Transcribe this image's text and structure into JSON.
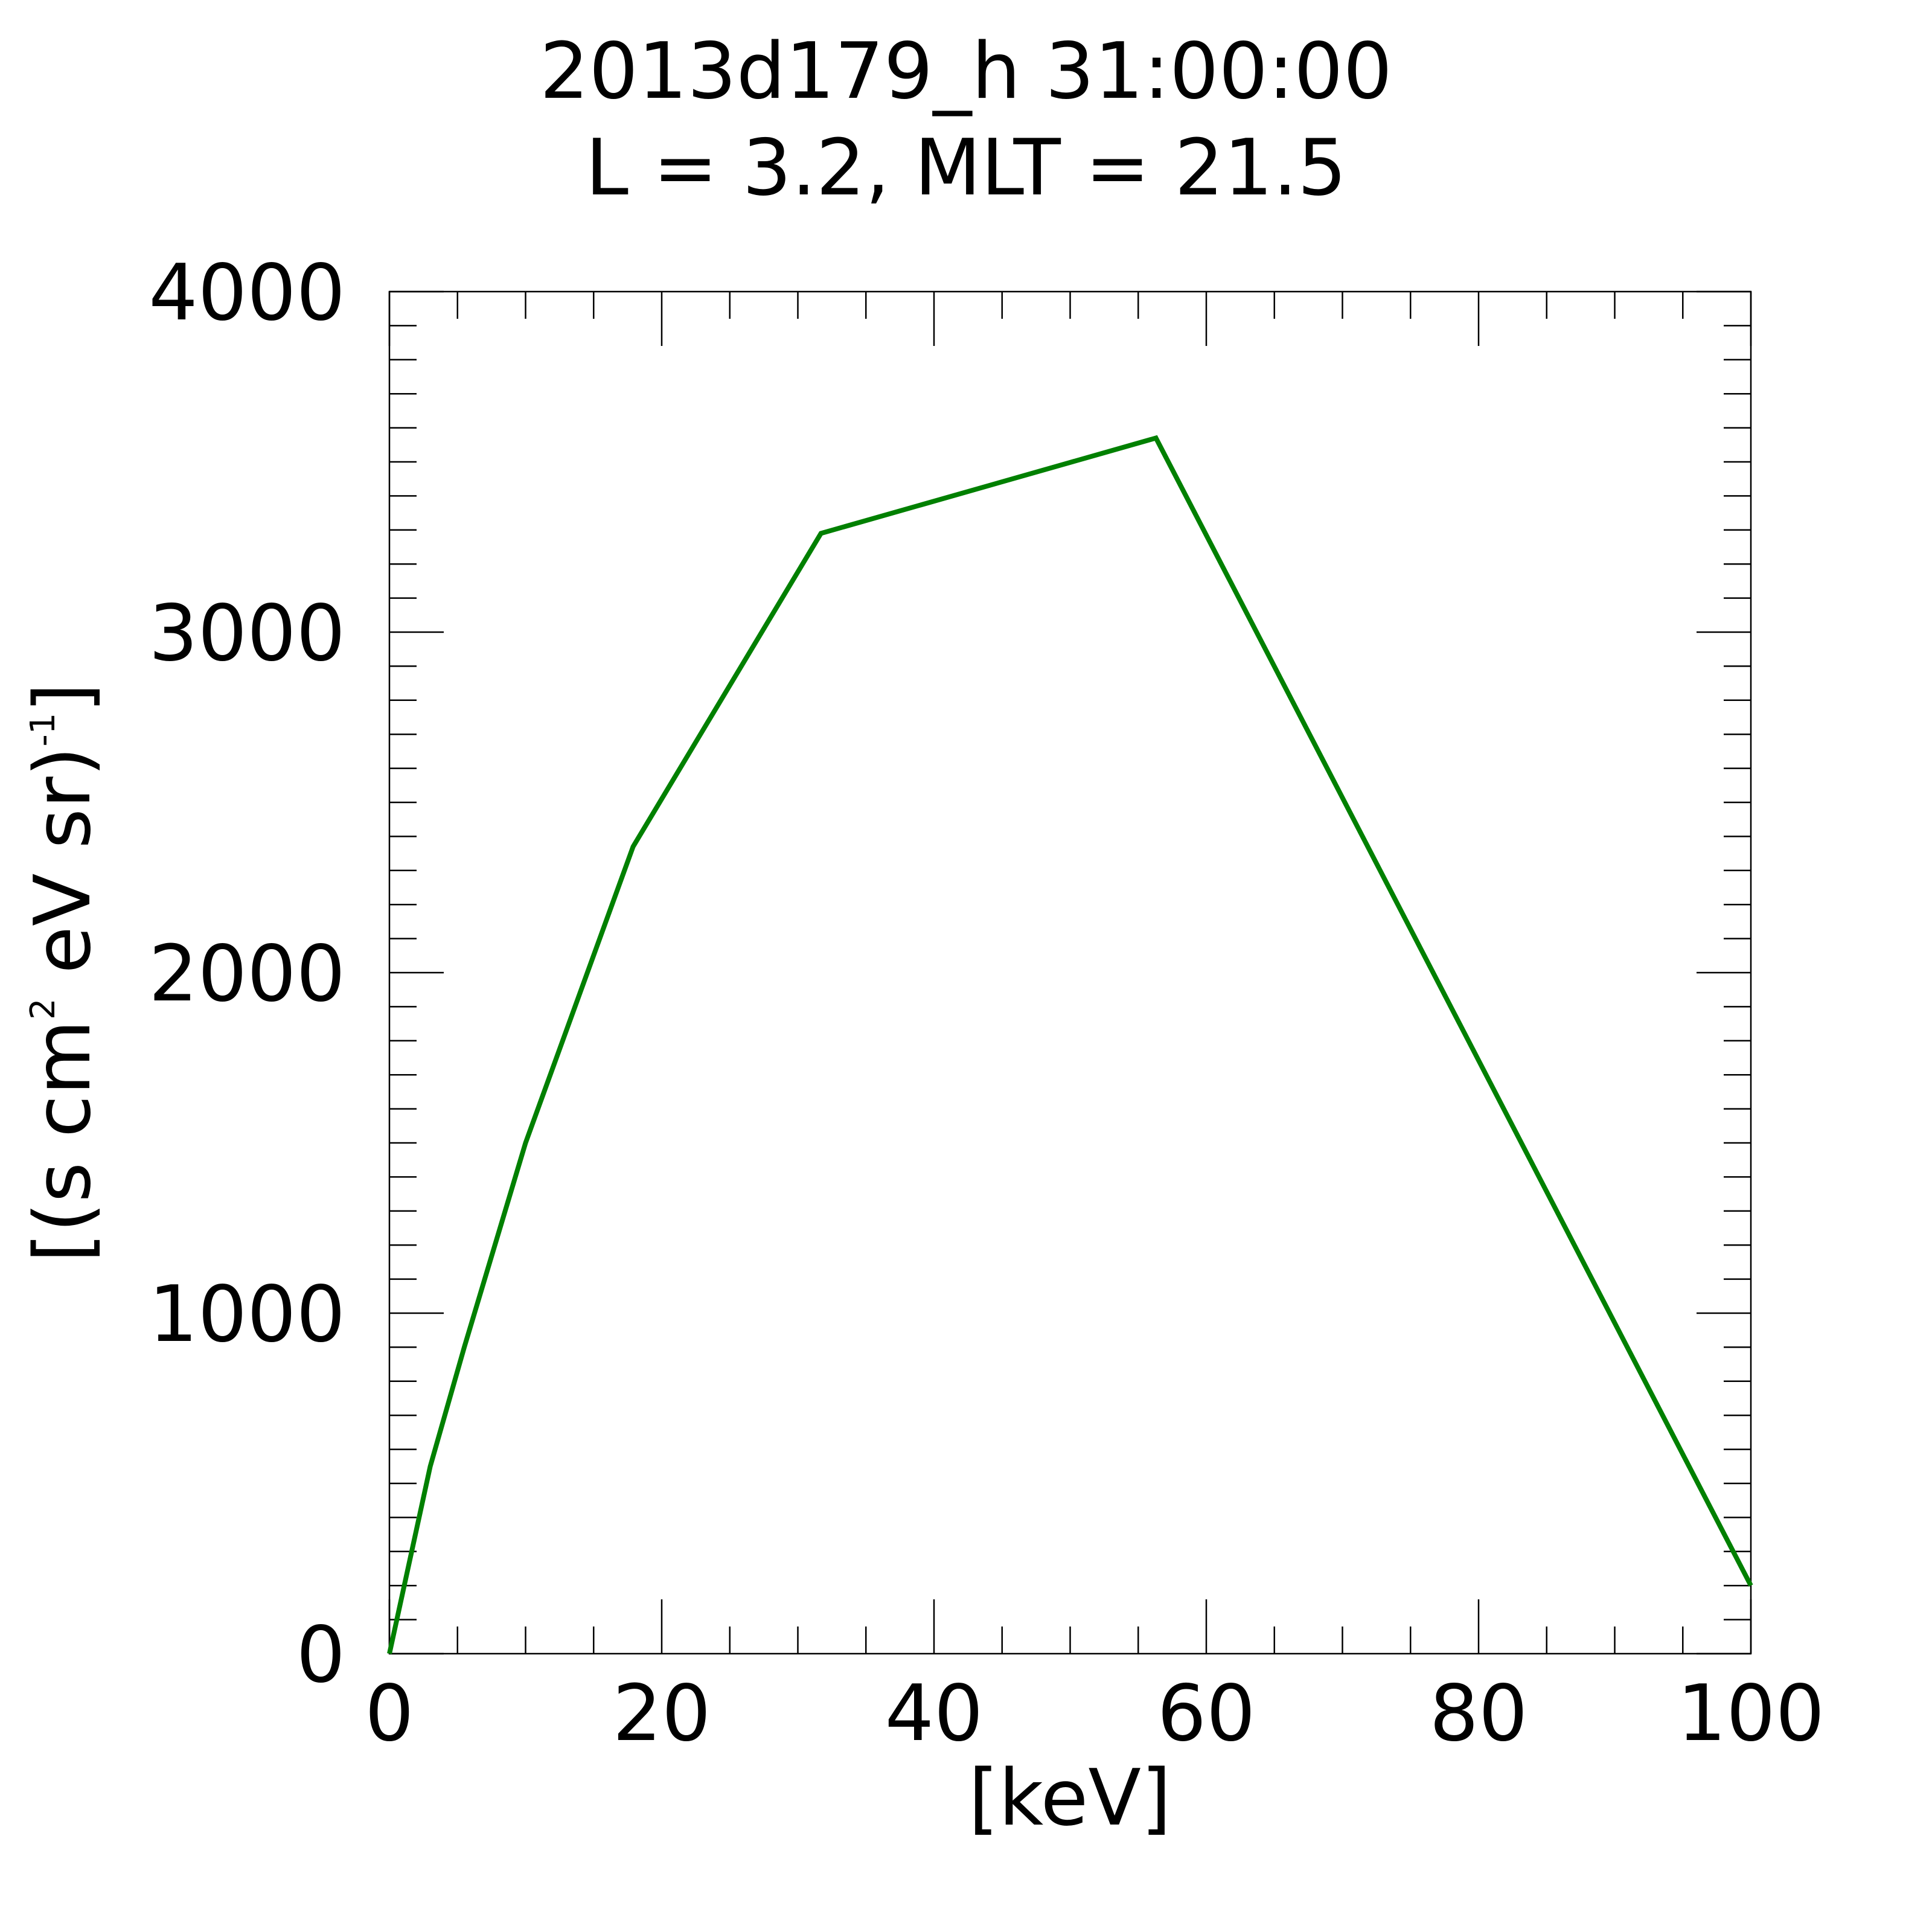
{
  "chart_data": {
    "type": "line",
    "title": "2013d179_h  31:00:00",
    "subtitle": "L = 3.2, MLT = 21.5",
    "xlabel": "[keV]",
    "ylabel": {
      "base": "[(s cm",
      "sup1": "2",
      "mid": " eV sr)",
      "sup2": "-1",
      "end": "]"
    },
    "xlim": [
      0,
      100
    ],
    "ylim": [
      0,
      4000
    ],
    "xticks": [
      0,
      20,
      40,
      60,
      80,
      100
    ],
    "yticks": [
      0,
      1000,
      2000,
      3000,
      4000
    ],
    "x_minor_step": 5,
    "y_minor_step": 100,
    "grid": false,
    "line_color": "#008000",
    "series": [
      {
        "x": [
          0,
          3,
          5.5,
          10,
          17.9,
          31.7,
          56.3,
          100
        ],
        "y": [
          0,
          550,
          900,
          1500,
          2370,
          3290,
          3570,
          200
        ]
      }
    ]
  }
}
